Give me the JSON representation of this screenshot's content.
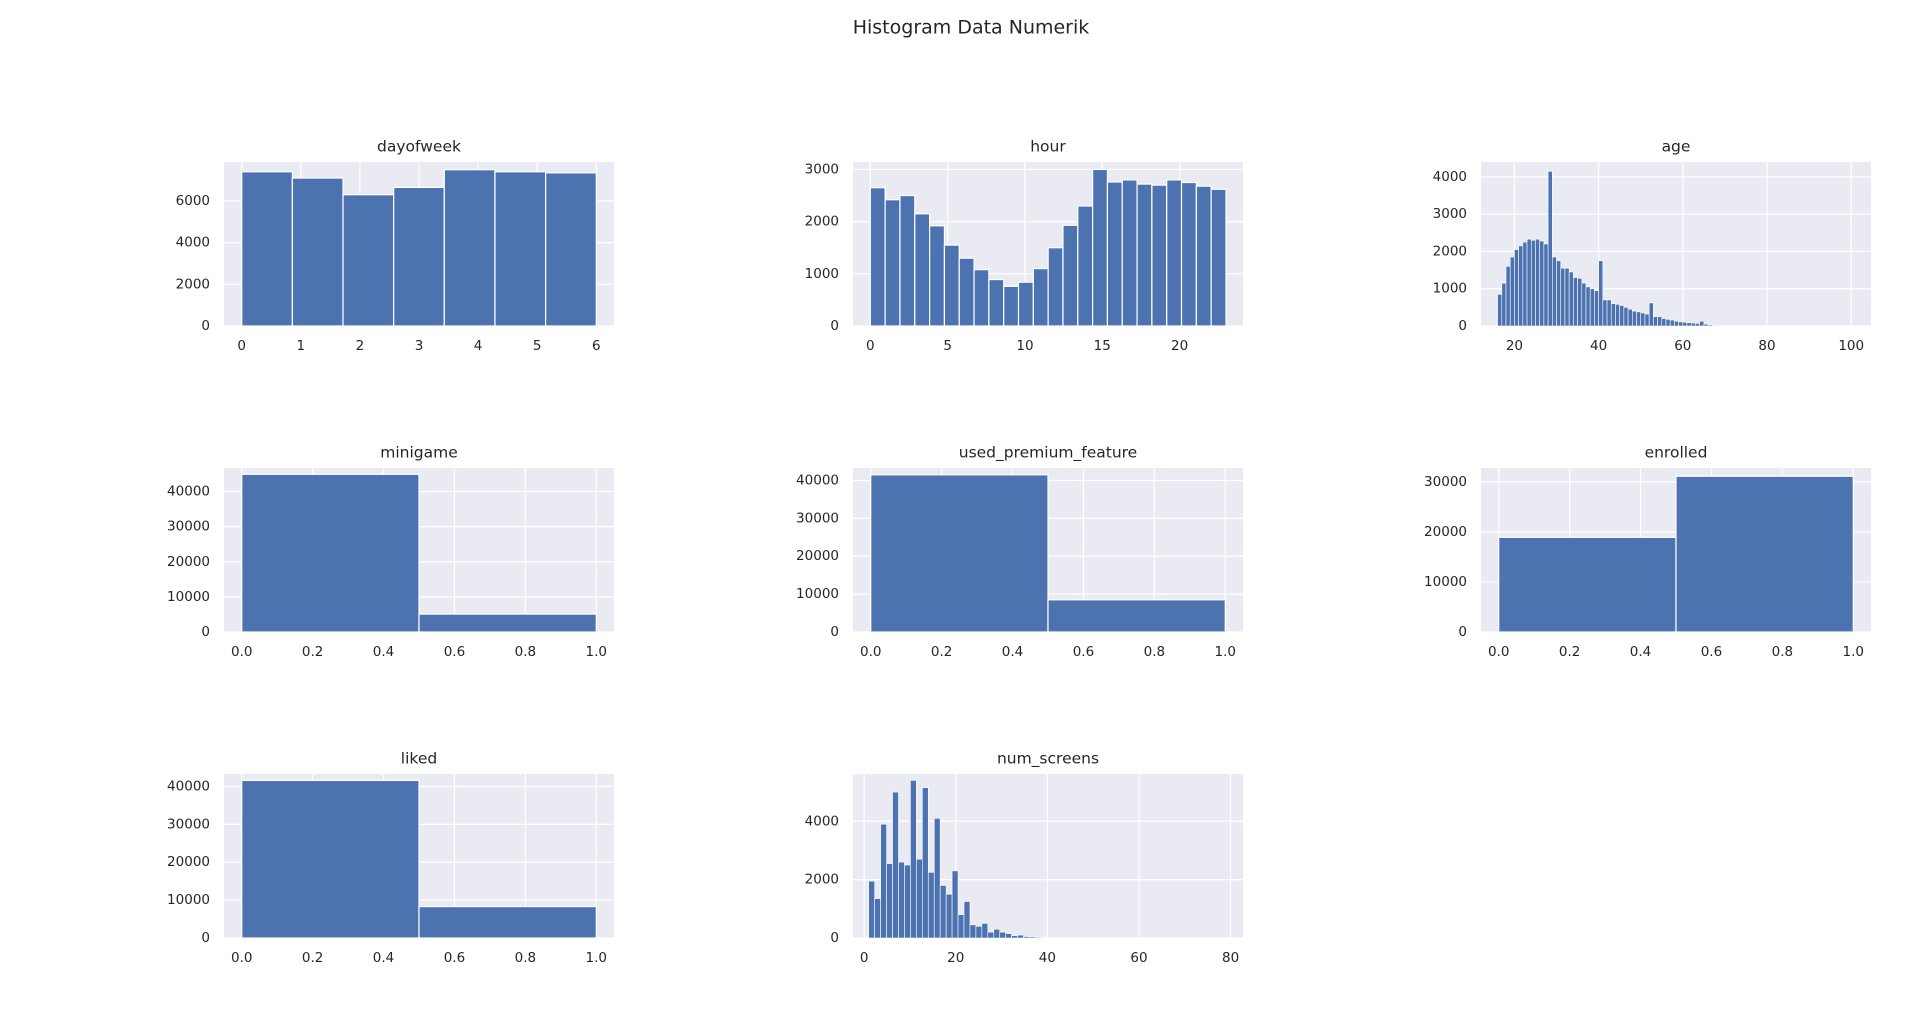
{
  "title": "Histogram Data Numerik",
  "chart_data": [
    {
      "type": "histogram",
      "title": "dayofweek",
      "color": "#4c72b0",
      "grid": true,
      "bins": [
        0,
        0.8571,
        1.7143,
        2.5714,
        3.4286,
        4.2857,
        5.1429,
        6
      ],
      "values": [
        7400,
        7100,
        6300,
        6650,
        7500,
        7400,
        7350
      ],
      "xlim": [
        -0.3,
        6.3
      ],
      "xticks": [
        0,
        1,
        2,
        3,
        4,
        5,
        6
      ],
      "ylim": [
        0,
        7870
      ],
      "yticks": [
        0,
        2000,
        4000,
        6000
      ]
    },
    {
      "type": "histogram",
      "title": "hour",
      "color": "#4c72b0",
      "grid": true,
      "bins": [
        0,
        0.9583,
        1.9167,
        2.875,
        3.8333,
        4.7917,
        5.75,
        6.7083,
        7.6667,
        8.625,
        9.5833,
        10.5417,
        11.5,
        12.4583,
        13.4167,
        14.375,
        15.3333,
        16.2917,
        17.25,
        18.2083,
        19.1667,
        20.125,
        21.0833,
        22.0417,
        23
      ],
      "values": [
        2650,
        2420,
        2500,
        2150,
        1920,
        1550,
        1300,
        1080,
        890,
        760,
        840,
        1100,
        1500,
        1930,
        2300,
        3000,
        2760,
        2800,
        2720,
        2700,
        2800,
        2750,
        2680,
        2620
      ],
      "xlim": [
        -1.12,
        24.1
      ],
      "xticks": [
        0,
        5,
        10,
        15,
        20
      ],
      "ylim": [
        0,
        3143
      ],
      "yticks": [
        0,
        1000,
        2000,
        3000
      ]
    },
    {
      "type": "histogram",
      "title": "age",
      "color": "#4c72b0",
      "grid": true,
      "bins": [
        16,
        17,
        18,
        19,
        20,
        21,
        22,
        23,
        24,
        25,
        26,
        27,
        28,
        29,
        30,
        31,
        32,
        33,
        34,
        35,
        36,
        37,
        38,
        39,
        40,
        41,
        42,
        43,
        44,
        45,
        46,
        47,
        48,
        49,
        50,
        51,
        52,
        53,
        54,
        55,
        56,
        57,
        58,
        59,
        60,
        61,
        62,
        63,
        64,
        65,
        66,
        67,
        68,
        69,
        70,
        71,
        72,
        73,
        74,
        75,
        76,
        77,
        78,
        79,
        80,
        81,
        82,
        83,
        84,
        85,
        86,
        87,
        88,
        89,
        90,
        91,
        92,
        93,
        94,
        95,
        96,
        97,
        98,
        99,
        100,
        101
      ],
      "values": [
        850,
        1150,
        1600,
        1850,
        2050,
        2150,
        2250,
        2330,
        2300,
        2330,
        2280,
        2200,
        4150,
        1850,
        1750,
        1550,
        1550,
        1450,
        1300,
        1280,
        1150,
        1050,
        1000,
        950,
        1750,
        700,
        700,
        600,
        580,
        550,
        500,
        450,
        400,
        380,
        350,
        320,
        620,
        250,
        250,
        200,
        180,
        160,
        130,
        110,
        100,
        90,
        80,
        70,
        130,
        50,
        30,
        20,
        15,
        10,
        8,
        6,
        5,
        4,
        3,
        3,
        2,
        2,
        1,
        1,
        1,
        1,
        0,
        1,
        0,
        0,
        1,
        0,
        0,
        0,
        0,
        1,
        0,
        0,
        0,
        0,
        0,
        0,
        0,
        0,
        1
      ],
      "xlim": [
        12.06,
        104.7
      ],
      "xticks": [
        20,
        40,
        60,
        80,
        100
      ],
      "ylim": [
        0,
        4400
      ],
      "yticks": [
        0,
        1000,
        2000,
        3000,
        4000
      ]
    },
    {
      "type": "histogram",
      "title": "minigame",
      "color": "#4c72b0",
      "grid": true,
      "bins": [
        0,
        0.5,
        1
      ],
      "values": [
        44900,
        5100
      ],
      "xlim": [
        -0.05,
        1.05
      ],
      "xticks": [
        {
          "value": 0,
          "label": "0.0"
        },
        0.2,
        0.4,
        0.6,
        0.8,
        {
          "value": 1,
          "label": "1.0"
        }
      ],
      "ylim": [
        0,
        46700
      ],
      "yticks": [
        0,
        10000,
        20000,
        30000,
        40000
      ]
    },
    {
      "type": "histogram",
      "title": "used_premium_feature",
      "color": "#4c72b0",
      "grid": true,
      "bins": [
        0,
        0.5,
        1
      ],
      "values": [
        41500,
        8500
      ],
      "xlim": [
        -0.05,
        1.05
      ],
      "xticks": [
        {
          "value": 0,
          "label": "0.0"
        },
        0.2,
        0.4,
        0.6,
        0.8,
        {
          "value": 1,
          "label": "1.0"
        }
      ],
      "ylim": [
        0,
        43300
      ],
      "yticks": [
        0,
        10000,
        20000,
        30000,
        40000
      ]
    },
    {
      "type": "histogram",
      "title": "enrolled",
      "color": "#4c72b0",
      "grid": true,
      "bins": [
        0,
        0.5,
        1
      ],
      "values": [
        18900,
        31100
      ],
      "xlim": [
        -0.05,
        1.05
      ],
      "xticks": [
        {
          "value": 0,
          "label": "0.0"
        },
        0.2,
        0.4,
        0.6,
        0.8,
        {
          "value": 1,
          "label": "1.0"
        }
      ],
      "ylim": [
        0,
        32750
      ],
      "yticks": [
        0,
        10000,
        20000,
        30000
      ]
    },
    {
      "type": "histogram",
      "title": "liked",
      "color": "#4c72b0",
      "grid": true,
      "bins": [
        0,
        0.5,
        1
      ],
      "values": [
        41600,
        8300
      ],
      "xlim": [
        -0.05,
        1.05
      ],
      "xticks": [
        {
          "value": 0,
          "label": "0.0"
        },
        0.2,
        0.4,
        0.6,
        0.8,
        {
          "value": 1,
          "label": "1.0"
        }
      ],
      "ylim": [
        0,
        43300
      ],
      "yticks": [
        0,
        10000,
        20000,
        30000,
        40000
      ]
    },
    {
      "type": "histogram",
      "title": "num_screens",
      "color": "#4c72b0",
      "grid": true,
      "bins": [
        1,
        2.3,
        3.6,
        4.9,
        6.2,
        7.5,
        8.8,
        10.1,
        11.4,
        12.7,
        14,
        15.3,
        16.6,
        17.9,
        19.2,
        20.5,
        21.8,
        23.1,
        24.4,
        25.7,
        27,
        28.3,
        29.6,
        30.9,
        32.2,
        33.5,
        34.8,
        36.1,
        37.4,
        38.7,
        40,
        41.3,
        42.6,
        43.9,
        45.2,
        46.5,
        47.8,
        49.1,
        50.4,
        51.7,
        53,
        54.3,
        55.6,
        56.9,
        58.2,
        59.5,
        60.8,
        62.1,
        63.4,
        64.7,
        66,
        67.3,
        68.6,
        69.9,
        71.2,
        72.5,
        73.8,
        75.1,
        76.4,
        77.7,
        79
      ],
      "values": [
        1950,
        1350,
        3900,
        2550,
        5000,
        2600,
        2500,
        5400,
        2700,
        5150,
        2250,
        4100,
        1800,
        1500,
        2300,
        800,
        1250,
        450,
        400,
        500,
        200,
        300,
        200,
        150,
        80,
        100,
        50,
        40,
        30,
        20,
        20,
        15,
        10,
        8,
        5,
        5,
        3,
        3,
        2,
        2,
        1,
        1,
        1,
        1,
        1,
        0,
        0,
        1,
        0,
        0,
        0,
        0,
        1,
        0,
        0,
        0,
        0,
        0,
        0,
        1
      ],
      "xlim": [
        -2.43,
        82.7
      ],
      "xticks": [
        0,
        20,
        40,
        60,
        80
      ],
      "ylim": [
        0,
        5620
      ],
      "yticks": [
        0,
        2000,
        4000
      ]
    }
  ]
}
